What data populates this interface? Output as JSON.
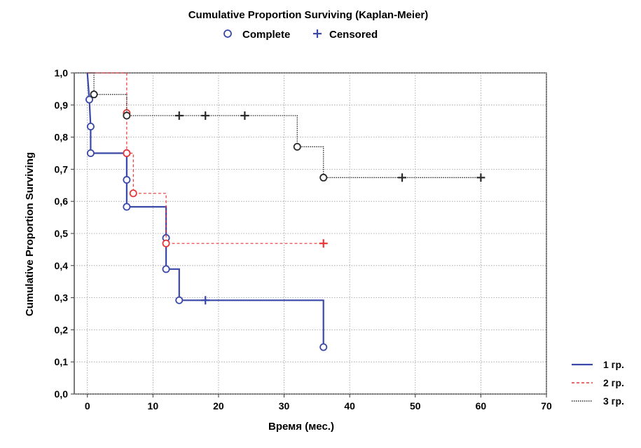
{
  "chart_data": {
    "type": "line",
    "subtype": "kaplan-meier step",
    "title": "Cumulative Proportion Surviving (Kaplan-Meier)",
    "marker_legend": [
      {
        "label": "Complete",
        "marker": "circle"
      },
      {
        "label": "Censored",
        "marker": "plus"
      }
    ],
    "xlabel": "Время (мес.)",
    "ylabel": "Cumulative Proportion Surviving",
    "xlim": [
      -2,
      70
    ],
    "ylim": [
      0,
      1.0
    ],
    "x_ticks": [
      "0",
      "10",
      "20",
      "30",
      "40",
      "50",
      "60",
      "70"
    ],
    "x_tick_values": [
      0,
      10,
      20,
      30,
      40,
      50,
      60,
      70
    ],
    "y_ticks": [
      "0,0",
      "0,1",
      "0,2",
      "0,3",
      "0,4",
      "0,5",
      "0,6",
      "0,7",
      "0,8",
      "0,9",
      "1,0"
    ],
    "y_tick_values": [
      0,
      0.1,
      0.2,
      0.3,
      0.4,
      0.5,
      0.6,
      0.7,
      0.8,
      0.9,
      1.0
    ],
    "grid": true,
    "legend_position": "bottom-right",
    "series": [
      {
        "name": "1 гр.",
        "color": "#3a48a8",
        "line_style": "solid",
        "steps": [
          [
            0,
            1.0
          ],
          [
            0.3,
            0.917
          ],
          [
            0.5,
            0.833
          ],
          [
            0.5,
            0.75
          ],
          [
            6,
            0.75
          ],
          [
            6,
            0.667
          ],
          [
            6,
            0.583
          ],
          [
            12,
            0.583
          ],
          [
            12,
            0.486
          ],
          [
            12,
            0.389
          ],
          [
            14,
            0.389
          ],
          [
            14,
            0.292
          ],
          [
            36,
            0.292
          ],
          [
            36,
            0.146
          ]
        ],
        "complete": [
          [
            0.3,
            0.917
          ],
          [
            0.5,
            0.833
          ],
          [
            0.5,
            0.75
          ],
          [
            6,
            0.75
          ],
          [
            6,
            0.667
          ],
          [
            6,
            0.583
          ],
          [
            12,
            0.486
          ],
          [
            12,
            0.389
          ],
          [
            14,
            0.292
          ],
          [
            36,
            0.146
          ]
        ],
        "censored": [
          [
            18,
            0.292
          ]
        ]
      },
      {
        "name": "2 гр.",
        "color": "#e8373a",
        "line_style": "dashed",
        "steps": [
          [
            0,
            1.0
          ],
          [
            6,
            1.0
          ],
          [
            6,
            0.875
          ],
          [
            6,
            0.75
          ],
          [
            7,
            0.75
          ],
          [
            7,
            0.625
          ],
          [
            12,
            0.625
          ],
          [
            12,
            0.469
          ],
          [
            36,
            0.469
          ]
        ],
        "complete": [
          [
            6,
            0.875
          ],
          [
            6,
            0.75
          ],
          [
            7,
            0.625
          ],
          [
            12,
            0.469
          ]
        ],
        "censored": [
          [
            36,
            0.469
          ]
        ]
      },
      {
        "name": "3 гр.",
        "color": "#2a2a2a",
        "line_style": "dotted",
        "steps": [
          [
            0,
            1.0
          ],
          [
            1,
            1.0
          ],
          [
            1,
            0.933
          ],
          [
            6,
            0.933
          ],
          [
            6,
            0.867
          ],
          [
            32,
            0.867
          ],
          [
            32,
            0.77
          ],
          [
            36,
            0.77
          ],
          [
            36,
            0.674
          ],
          [
            60,
            0.674
          ]
        ],
        "complete": [
          [
            1,
            0.933
          ],
          [
            6,
            0.867
          ],
          [
            32,
            0.77
          ],
          [
            36,
            0.674
          ]
        ],
        "censored": [
          [
            14,
            0.867
          ],
          [
            18,
            0.867
          ],
          [
            24,
            0.867
          ],
          [
            48,
            0.674
          ],
          [
            60,
            0.674
          ]
        ]
      }
    ]
  }
}
